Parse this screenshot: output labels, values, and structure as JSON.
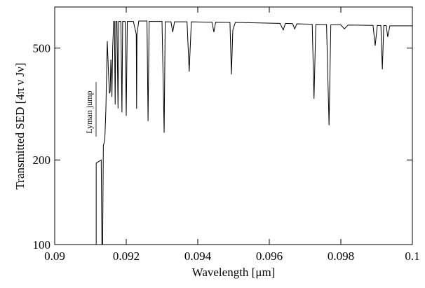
{
  "chart_data": {
    "type": "line",
    "xlabel": "Wavelength [μm]",
    "ylabel": "Transmitted SED [4π ν Jν]",
    "annotation": "Lyman jump",
    "log_y": true,
    "xlim": [
      0.09,
      0.1
    ],
    "xticks": [
      0.09,
      0.092,
      0.094,
      0.096,
      0.098,
      0.1
    ],
    "ylim": [
      100,
      700
    ],
    "yticks": [
      100,
      200,
      500
    ],
    "series": [
      {
        "color": "#000000",
        "x": [
          0.09116,
          0.09116,
          0.0913,
          0.09132,
          0.09134,
          0.09136,
          0.0914,
          0.09143,
          0.09147,
          0.0915,
          0.09153,
          0.09155,
          0.09157,
          0.09159,
          0.0916,
          0.09162,
          0.09165,
          0.09167,
          0.09169,
          0.09171,
          0.09174,
          0.09177,
          0.09179,
          0.09185,
          0.09188,
          0.0919,
          0.09197,
          0.092,
          0.09203,
          0.0922,
          0.09228,
          0.09229,
          0.0923,
          0.09235,
          0.09258,
          0.09261,
          0.09264,
          0.093,
          0.09306,
          0.09309,
          0.09325,
          0.0933,
          0.09335,
          0.0937,
          0.09376,
          0.09382,
          0.0944,
          0.09445,
          0.0945,
          0.0949,
          0.09494,
          0.09498,
          0.09505,
          0.0963,
          0.09639,
          0.09645,
          0.09665,
          0.09671,
          0.09677,
          0.0972,
          0.09725,
          0.0973,
          0.0976,
          0.09767,
          0.09772,
          0.098,
          0.0981,
          0.0982,
          0.0989,
          0.09896,
          0.09902,
          0.09912,
          0.09916,
          0.0992,
          0.09927,
          0.09931,
          0.09937,
          0.1
        ],
        "values": [
          100,
          195,
          200,
          100,
          100,
          225,
          235,
          300,
          530,
          420,
          345,
          350,
          455,
          400,
          335,
          500,
          622,
          622,
          315,
          622,
          622,
          305,
          622,
          622,
          295,
          622,
          622,
          287,
          622,
          622,
          560,
          304,
          560,
          624,
          624,
          275,
          622,
          622,
          250,
          620,
          620,
          570,
          620,
          620,
          412,
          620,
          618,
          570,
          618,
          617,
          403,
          580,
          617,
          612,
          580,
          612,
          611,
          585,
          610,
          608,
          330,
          607,
          606,
          266,
          605,
          605,
          585,
          604,
          602,
          510,
          602,
          601,
          420,
          601,
          601,
          548,
          600,
          600
        ]
      }
    ]
  }
}
